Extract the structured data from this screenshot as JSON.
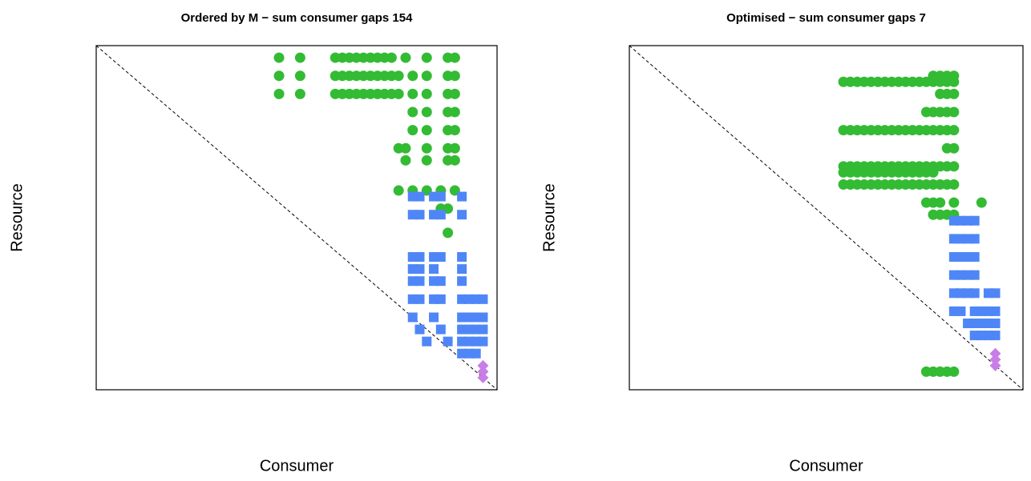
{
  "chart_data": [
    {
      "type": "scatter",
      "title": "Ordered by M − sum consumer gaps 154",
      "xlabel": "Consumer",
      "ylabel": "Resource",
      "xlim": [
        0,
        57
      ],
      "ylim": [
        0,
        57
      ],
      "diagonal": true,
      "series": [
        {
          "color": "#33bb33",
          "marker": "circle",
          "x": [
            26,
            29,
            34,
            35,
            36,
            37,
            38,
            39,
            40,
            41,
            42,
            44,
            47,
            50,
            51,
            26,
            29,
            34,
            35,
            36,
            37,
            38,
            39,
            40,
            41,
            42,
            43,
            45,
            47,
            50,
            51,
            26,
            29,
            34,
            35,
            36,
            37,
            38,
            39,
            40,
            41,
            42,
            43,
            45,
            47,
            50,
            51,
            45,
            47,
            50,
            51,
            45,
            47,
            50,
            51,
            43,
            44,
            47,
            50,
            51,
            44,
            47,
            50,
            51,
            43,
            45,
            47,
            49,
            51,
            49,
            50,
            50
          ],
          "values": [
            55,
            55,
            55,
            55,
            55,
            55,
            55,
            55,
            55,
            55,
            55,
            55,
            55,
            55,
            55,
            52,
            52,
            52,
            52,
            52,
            52,
            52,
            52,
            52,
            52,
            52,
            52,
            52,
            52,
            52,
            52,
            49,
            49,
            49,
            49,
            49,
            49,
            49,
            49,
            49,
            49,
            49,
            49,
            49,
            49,
            49,
            49,
            46,
            46,
            46,
            46,
            43,
            43,
            43,
            43,
            40,
            40,
            40,
            40,
            40,
            38,
            38,
            38,
            38,
            33,
            33,
            33,
            33,
            33,
            30,
            30,
            26
          ]
        },
        {
          "color": "#4f86f7",
          "marker": "square",
          "x": [
            45,
            46,
            48,
            49,
            52,
            45,
            46,
            48,
            49,
            52,
            45,
            46,
            48,
            49,
            52,
            45,
            46,
            48,
            52,
            45,
            46,
            48,
            49,
            52,
            45,
            46,
            48,
            49,
            52,
            53,
            54,
            55,
            45,
            48,
            52,
            53,
            54,
            55,
            46,
            49,
            52,
            53,
            54,
            55,
            47,
            50,
            52,
            53,
            54,
            55,
            52,
            53,
            54
          ],
          "values": [
            32,
            32,
            32,
            32,
            32,
            29,
            29,
            29,
            29,
            29,
            22,
            22,
            22,
            22,
            22,
            20,
            20,
            20,
            20,
            18,
            18,
            18,
            18,
            18,
            15,
            15,
            15,
            15,
            15,
            15,
            15,
            15,
            12,
            12,
            12,
            12,
            12,
            12,
            10,
            10,
            10,
            10,
            10,
            10,
            8,
            8,
            8,
            8,
            8,
            8,
            6,
            6,
            6
          ]
        },
        {
          "color": "#c87ee6",
          "marker": "diamond",
          "x": [
            55,
            55,
            55
          ],
          "values": [
            4,
            3,
            2
          ]
        }
      ]
    },
    {
      "type": "scatter",
      "title": "Optimised − sum consumer gaps 7",
      "xlabel": "Consumer",
      "ylabel": "Resource",
      "xlim": [
        0,
        57
      ],
      "ylim": [
        0,
        57
      ],
      "diagonal": true,
      "series": [
        {
          "color": "#33bb33",
          "marker": "circle",
          "x": [
            44,
            45,
            46,
            47,
            31,
            32,
            33,
            34,
            35,
            36,
            37,
            38,
            39,
            40,
            41,
            42,
            43,
            44,
            45,
            46,
            47,
            45,
            46,
            47,
            43,
            44,
            45,
            46,
            47,
            31,
            32,
            33,
            34,
            35,
            36,
            37,
            38,
            39,
            40,
            41,
            42,
            43,
            44,
            45,
            46,
            47,
            46,
            47,
            31,
            32,
            33,
            34,
            35,
            36,
            37,
            38,
            39,
            40,
            41,
            42,
            43,
            44,
            45,
            46,
            47,
            31,
            32,
            33,
            34,
            35,
            36,
            37,
            38,
            39,
            40,
            41,
            42,
            43,
            44,
            31,
            32,
            33,
            34,
            35,
            36,
            37,
            38,
            39,
            40,
            41,
            42,
            43,
            44,
            45,
            46,
            47,
            43,
            44,
            45,
            47,
            51,
            44,
            45,
            46,
            47,
            43,
            44,
            45,
            46,
            47
          ],
          "values": [
            52,
            52,
            52,
            52,
            51,
            51,
            51,
            51,
            51,
            51,
            51,
            51,
            51,
            51,
            51,
            51,
            51,
            51,
            51,
            51,
            51,
            49,
            49,
            49,
            46,
            46,
            46,
            46,
            46,
            43,
            43,
            43,
            43,
            43,
            43,
            43,
            43,
            43,
            43,
            43,
            43,
            43,
            43,
            43,
            43,
            43,
            40,
            40,
            37,
            37,
            37,
            37,
            37,
            37,
            37,
            37,
            37,
            37,
            37,
            37,
            37,
            37,
            37,
            37,
            37,
            36,
            36,
            36,
            36,
            36,
            36,
            36,
            36,
            36,
            36,
            36,
            36,
            36,
            36,
            34,
            34,
            34,
            34,
            34,
            34,
            34,
            34,
            34,
            34,
            34,
            34,
            34,
            34,
            34,
            34,
            34,
            31,
            31,
            31,
            31,
            31,
            29,
            29,
            29,
            29,
            3,
            3,
            3,
            3,
            3
          ]
        },
        {
          "color": "#4f86f7",
          "marker": "square",
          "x": [
            47,
            48,
            49,
            50,
            47,
            48,
            49,
            50,
            47,
            48,
            49,
            50,
            47,
            48,
            49,
            50,
            47,
            48,
            49,
            50,
            52,
            53,
            47,
            48,
            50,
            51,
            52,
            53,
            49,
            50,
            51,
            52,
            53,
            50,
            51,
            52,
            53
          ],
          "values": [
            28,
            28,
            28,
            28,
            25,
            25,
            25,
            25,
            22,
            22,
            22,
            22,
            19,
            19,
            19,
            19,
            16,
            16,
            16,
            16,
            16,
            16,
            13,
            13,
            13,
            13,
            13,
            13,
            11,
            11,
            11,
            11,
            11,
            9,
            9,
            9,
            9
          ]
        },
        {
          "color": "#c87ee6",
          "marker": "diamond",
          "x": [
            53,
            53,
            53
          ],
          "values": [
            6,
            5,
            4
          ]
        }
      ]
    }
  ]
}
